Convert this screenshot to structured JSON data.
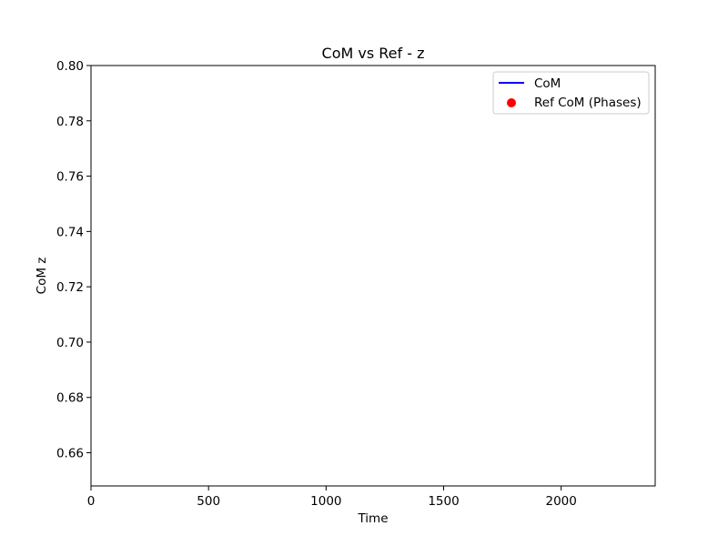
{
  "chart_data": {
    "type": "line",
    "title": "CoM vs Ref - z",
    "xlabel": "Time",
    "ylabel": "CoM z",
    "xlim": [
      0,
      2400
    ],
    "ylim": [
      0.648,
      0.8
    ],
    "x_ticks": [
      0,
      500,
      1000,
      1500,
      2000
    ],
    "x_tick_labels": [
      "0",
      "500",
      "1000",
      "1500",
      "2000"
    ],
    "y_ticks": [
      0.66,
      0.68,
      0.7,
      0.72,
      0.74,
      0.76,
      0.78,
      0.8
    ],
    "y_tick_labels": [
      "0.66",
      "0.68",
      "0.70",
      "0.72",
      "0.74",
      "0.76",
      "0.78",
      "0.80"
    ],
    "grid": false,
    "legend_position": "top-right",
    "series": [
      {
        "name": "CoM",
        "kind": "line",
        "color": "#0000ff",
        "x": [],
        "y": []
      },
      {
        "name": "Ref CoM (Phases)",
        "kind": "scatter",
        "color": "#ff0000",
        "x": [],
        "y": []
      }
    ]
  }
}
